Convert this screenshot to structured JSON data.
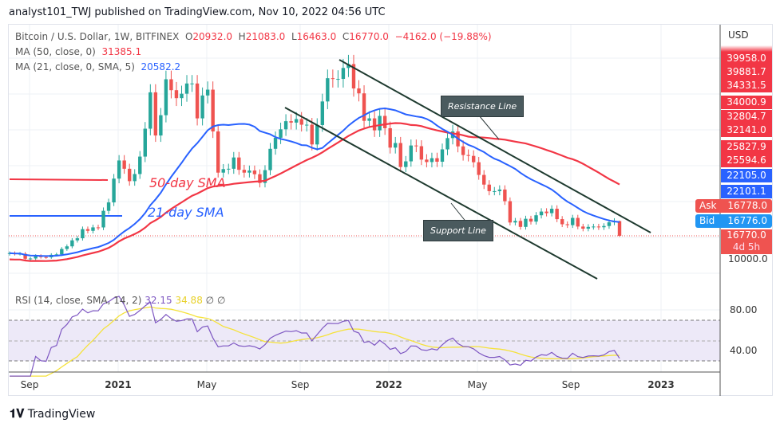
{
  "header": {
    "published": "analyst101_TWJ published on TradingView.com, Nov 10, 2022 04:56 UTC"
  },
  "legend": {
    "symbol": "Bitcoin / U.S. Dollar, 1W, BITFINEX",
    "o_label": "O",
    "o": "20932.0",
    "h_label": "H",
    "h": "21083.0",
    "l_label": "L",
    "l": "16463.0",
    "c_label": "C",
    "c": "16770.0",
    "change": "−4162.0 (−19.88%)",
    "ma50_label": "MA (50, close, 0)",
    "ma50_value": "31385.1",
    "ma21_label": "MA (21, close, 0, SMA, 5)",
    "ma21_value": "20582.2",
    "rsi_label": "RSI (14, close, SMA, 14, 2)",
    "rsi_value": "32.15",
    "rsi_sma_value": "34.88",
    "na1": "∅",
    "na2": "∅"
  },
  "price_axis": {
    "currency": "USD",
    "labels": [
      "39958.0",
      "39881.7",
      "34331.5",
      "34000.9",
      "32804.7",
      "32141.0",
      "25827.9",
      "25594.6",
      "22105.0",
      "22101.1"
    ],
    "ask_label": "Ask",
    "ask": "16778.0",
    "bid_label": "Bid",
    "bid": "16776.0",
    "last": "16770.0",
    "countdown": "4d 5h",
    "bottom": "10000.0"
  },
  "rsi_axis": {
    "labels": [
      "80.00",
      "40.00"
    ]
  },
  "time_axis": [
    "Sep",
    "2021",
    "May",
    "Sep",
    "2022",
    "May",
    "Sep",
    "2023"
  ],
  "annotations": {
    "resistance": "Resistance Line",
    "support": "Support Line",
    "sma50": "50-day SMA",
    "sma21": "21-day SMA"
  },
  "colors": {
    "up": "#26a69a",
    "down": "#ef5350",
    "ma50": "#f23645",
    "ma21": "#2962ff",
    "rsi": "#7e57c2",
    "rsi_sma": "#f5e23a",
    "trendline": "#1e3a2f"
  },
  "footer": {
    "logo": "TradingView"
  },
  "chart_data": {
    "type": "candlestick",
    "interval": "1W",
    "start_week": "2020-08-10",
    "y_scale": "linear",
    "closes": [
      11860,
      11650,
      11680,
      10250,
      10330,
      11080,
      10730,
      10670,
      11370,
      11500,
      13030,
      13780,
      15480,
      16070,
      18660,
      18180,
      19160,
      19150,
      23860,
      26250,
      33000,
      38150,
      35800,
      32280,
      34300,
      39250,
      47170,
      57490,
      45240,
      51000,
      61200,
      58100,
      55840,
      57100,
      60000,
      60000,
      50100,
      56600,
      58250,
      46400,
      34700,
      35700,
      35800,
      39000,
      35500,
      34700,
      35300,
      34250,
      31780,
      35400,
      41460,
      44600,
      47000,
      49300,
      48900,
      49900,
      48300,
      48300,
      42700,
      48200,
      54900,
      61500,
      61300,
      61300,
      64400,
      65500,
      58600,
      57200,
      49400,
      50100,
      46700,
      50800,
      47300,
      41800,
      43100,
      36300,
      37900,
      42400,
      42200,
      38400,
      37700,
      38800,
      37800,
      41300,
      44500,
      46400,
      42150,
      39700,
      39450,
      37650,
      34050,
      31300,
      29450,
      29450,
      29900,
      26600,
      20550,
      21000,
      19300,
      21600,
      20800,
      22600,
      23650,
      23200,
      24450,
      21500,
      20050,
      19800,
      21850,
      19400,
      18800,
      19300,
      19400,
      19200,
      19550,
      20600,
      20930,
      16770
    ],
    "last_candle": {
      "date": "2022-11-07",
      "open": 20932.0,
      "high": 21083.0,
      "low": 16463.0,
      "close": 16770.0
    },
    "indicators": [
      "MA 50",
      "MA 21",
      "RSI 14 with SMA 14"
    ],
    "rsi_levels": [
      30,
      50,
      70
    ]
  }
}
